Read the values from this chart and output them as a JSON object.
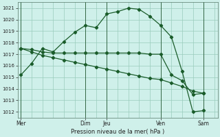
{
  "title": "Pression niveau de la mer( hPa )",
  "bg_color": "#cff0ea",
  "grid_color": "#99ccbb",
  "line_color": "#1a5c2a",
  "vline_color": "#336644",
  "ylim": [
    1011.5,
    1021.5
  ],
  "yticks": [
    1012,
    1013,
    1014,
    1015,
    1016,
    1017,
    1018,
    1019,
    1020,
    1021
  ],
  "xlim": [
    -0.3,
    18.3
  ],
  "xtick_pos": [
    0,
    6,
    8,
    13,
    17
  ],
  "xtick_labels": [
    "Mer",
    "Dim",
    "Jeu",
    "Ven",
    "Sam"
  ],
  "vline_pos": [
    0,
    6,
    8,
    13,
    17
  ],
  "curve1_x": [
    0,
    1,
    2,
    3,
    4,
    5,
    6,
    7,
    8,
    9,
    10,
    11,
    12,
    13,
    14,
    15,
    16,
    17
  ],
  "curve1_y": [
    1015.2,
    1016.2,
    1017.5,
    1017.2,
    1018.1,
    1018.9,
    1019.5,
    1019.3,
    1020.5,
    1020.7,
    1021.0,
    1020.9,
    1020.3,
    1019.5,
    1018.5,
    1015.5,
    1012.0,
    1012.1
  ],
  "curve2_x": [
    0,
    1,
    2,
    3,
    4,
    5,
    6,
    7,
    8,
    9,
    10,
    11,
    12,
    13,
    14,
    15,
    16,
    17
  ],
  "curve2_y": [
    1017.5,
    1017.4,
    1017.2,
    1017.1,
    1017.1,
    1017.1,
    1017.1,
    1017.1,
    1017.1,
    1017.1,
    1017.1,
    1017.1,
    1017.0,
    1017.0,
    1015.2,
    1014.7,
    1013.5,
    1013.6
  ],
  "curve3_x": [
    0,
    1,
    2,
    3,
    4,
    5,
    6,
    7,
    8,
    9,
    10,
    11,
    12,
    13,
    14,
    15,
    16,
    17
  ],
  "curve3_y": [
    1017.5,
    1017.2,
    1016.9,
    1016.7,
    1016.5,
    1016.3,
    1016.1,
    1015.9,
    1015.7,
    1015.5,
    1015.3,
    1015.1,
    1014.9,
    1014.8,
    1014.5,
    1014.2,
    1013.8,
    1013.6
  ]
}
